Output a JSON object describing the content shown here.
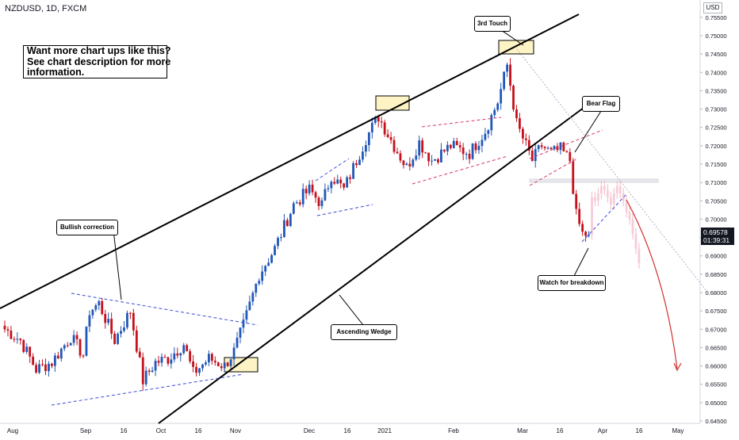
{
  "symbol": "NZDUSD, 1D, FXCM",
  "currency": "USD",
  "promo": {
    "line1": "Want more chart ups like this?",
    "line2": "See chart description for more",
    "line3": "information."
  },
  "annotations": {
    "bullish_correction": "Bullish correction",
    "third_touch": "3rd Touch",
    "bear_flag": "Bear Flag",
    "watch_breakdown": "Watch for breakdown",
    "ascending_wedge": "Ascending Wedge"
  },
  "colors": {
    "up": "#2157b8",
    "down": "#c4111c",
    "wedge": "#000000",
    "channel": "#3b4bd6",
    "flag": "#d6336c",
    "projection": "#d32f2f",
    "highlight": "#fdf3c4",
    "price_tag": "#131722"
  },
  "last_price": {
    "value": "0.69578",
    "countdown": "01:39:31"
  },
  "chart_data": {
    "type": "candlestick",
    "ylim": [
      0.645,
      0.758
    ],
    "yticks": [
      "0.75500",
      "0.75000",
      "0.74500",
      "0.74000",
      "0.73500",
      "0.73000",
      "0.72500",
      "0.72000",
      "0.71500",
      "0.71000",
      "0.70500",
      "0.70000",
      "0.69500",
      "0.69000",
      "0.68500",
      "0.68000",
      "0.67500",
      "0.67000",
      "0.66500",
      "0.66000",
      "0.65500",
      "0.65000",
      "0.64500"
    ],
    "xticks": [
      "Aug",
      "Sep",
      "16",
      "Oct",
      "16",
      "Nov",
      "Dec",
      "16",
      "2021",
      "Feb",
      "Mar",
      "16",
      "Apr",
      "16",
      "May"
    ],
    "waypoints": [
      {
        "i": 0,
        "p": 0.67
      },
      {
        "i": 5,
        "p": 0.667
      },
      {
        "i": 10,
        "p": 0.659
      },
      {
        "i": 15,
        "p": 0.661
      },
      {
        "i": 21,
        "p": 0.668
      },
      {
        "i": 25,
        "p": 0.663
      },
      {
        "i": 27,
        "p": 0.675
      },
      {
        "i": 30,
        "p": 0.677
      },
      {
        "i": 35,
        "p": 0.667
      },
      {
        "i": 40,
        "p": 0.675
      },
      {
        "i": 44,
        "p": 0.656
      },
      {
        "i": 48,
        "p": 0.661
      },
      {
        "i": 52,
        "p": 0.662
      },
      {
        "i": 57,
        "p": 0.666
      },
      {
        "i": 60,
        "p": 0.658
      },
      {
        "i": 65,
        "p": 0.662
      },
      {
        "i": 70,
        "p": 0.66
      },
      {
        "i": 73,
        "p": 0.664
      },
      {
        "i": 76,
        "p": 0.671
      },
      {
        "i": 81,
        "p": 0.685
      },
      {
        "i": 86,
        "p": 0.692
      },
      {
        "i": 92,
        "p": 0.704
      },
      {
        "i": 97,
        "p": 0.708
      },
      {
        "i": 101,
        "p": 0.704
      },
      {
        "i": 104,
        "p": 0.712
      },
      {
        "i": 108,
        "p": 0.708
      },
      {
        "i": 111,
        "p": 0.714
      },
      {
        "i": 115,
        "p": 0.722
      },
      {
        "i": 119,
        "p": 0.728
      },
      {
        "i": 124,
        "p": 0.72
      },
      {
        "i": 128,
        "p": 0.714
      },
      {
        "i": 132,
        "p": 0.721
      },
      {
        "i": 136,
        "p": 0.716
      },
      {
        "i": 142,
        "p": 0.72
      },
      {
        "i": 148,
        "p": 0.718
      },
      {
        "i": 153,
        "p": 0.724
      },
      {
        "i": 157,
        "p": 0.732
      },
      {
        "i": 160,
        "p": 0.742
      },
      {
        "i": 163,
        "p": 0.726
      },
      {
        "i": 166,
        "p": 0.72
      },
      {
        "i": 168,
        "p": 0.716
      },
      {
        "i": 171,
        "p": 0.72
      },
      {
        "i": 174,
        "p": 0.718
      },
      {
        "i": 177,
        "p": 0.719
      },
      {
        "i": 180,
        "p": 0.716
      },
      {
        "i": 182,
        "p": 0.701
      },
      {
        "i": 184,
        "p": 0.696
      },
      {
        "i": 186,
        "p": 0.6958
      }
    ],
    "projection_ghost": [
      0.706,
      0.705,
      0.707,
      0.709,
      0.708,
      0.706,
      0.704,
      0.707,
      0.709,
      0.707,
      0.705,
      0.702,
      0.7,
      0.696,
      0.692,
      0.688
    ]
  }
}
